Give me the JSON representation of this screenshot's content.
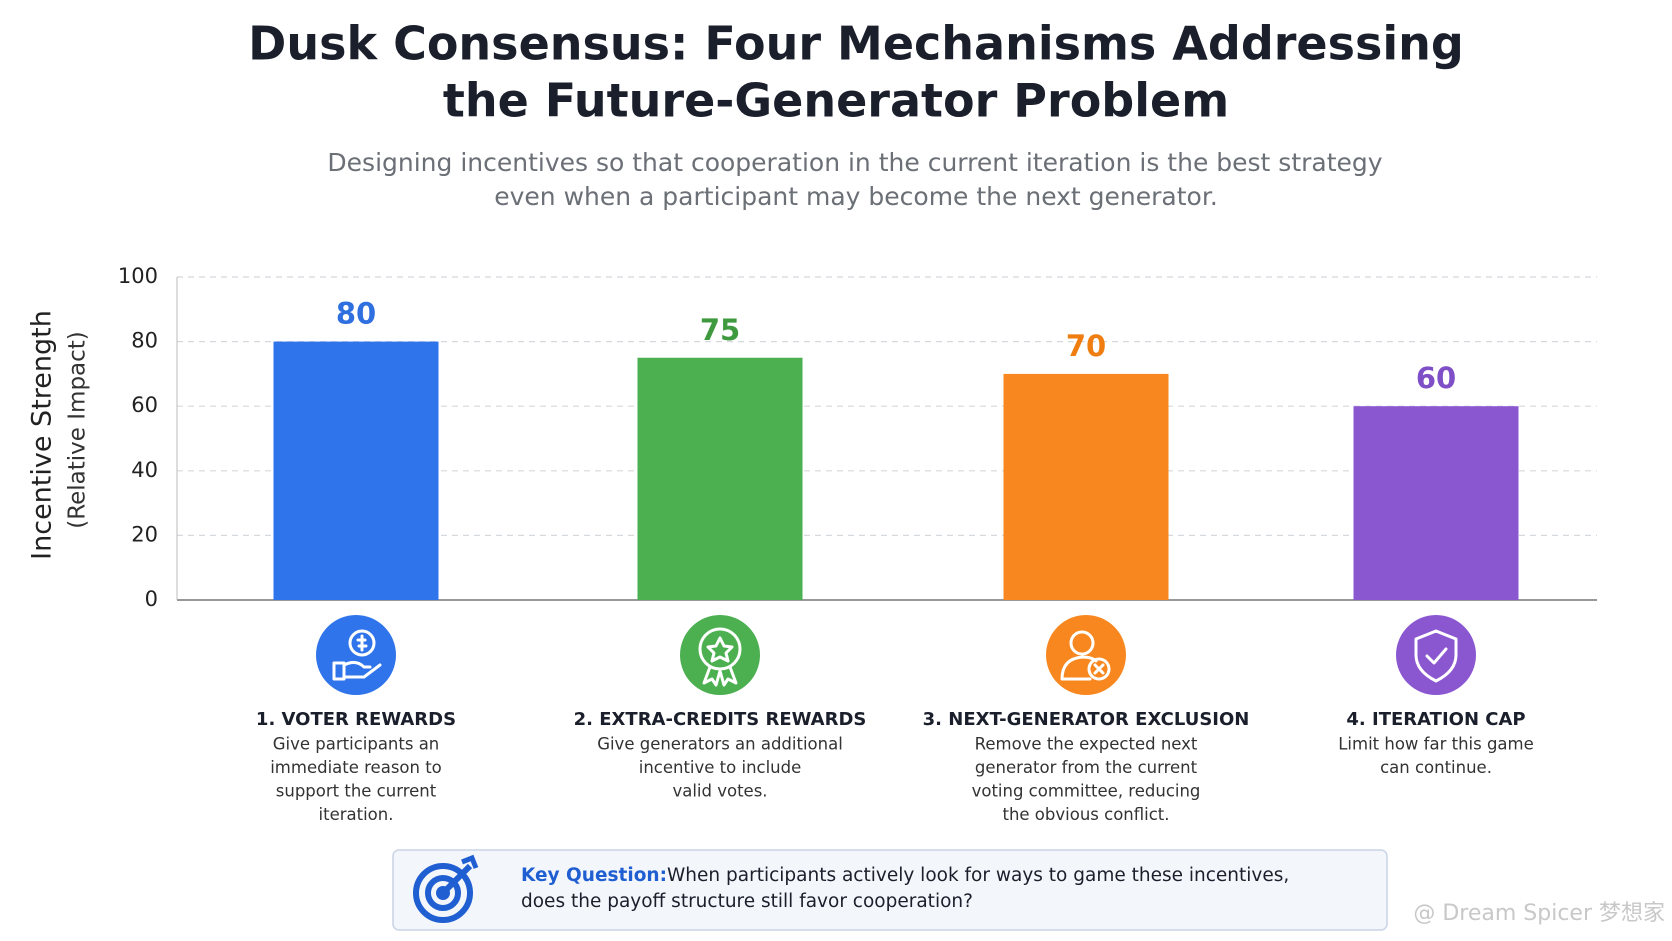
{
  "chart_data": {
    "type": "bar",
    "title": [
      "Dusk Consensus: Four Mechanisms Addressing",
      "the Future-Generator Problem"
    ],
    "subtitle": [
      "Designing incentives so that cooperation in the current iteration is the best strategy",
      "even when a participant may become the next generator."
    ],
    "y_label": [
      "Incentive Strength",
      "(Relative Impact)"
    ],
    "categories": [
      "1. VOTER REWARDS",
      "2. EXTRA-CREDITS REWARDS",
      "3. NEXT-GENERATOR EXCLUSION",
      "4. ITERATION CAP"
    ],
    "descriptions": [
      [
        "Give participants an",
        "immediate reason to",
        "support the current",
        "iteration."
      ],
      [
        "Give generators an additional",
        "incentive to include",
        "valid votes."
      ],
      [
        "Remove the expected next",
        "generator from the current",
        "voting committee, reducing",
        "the obvious conflict."
      ],
      [
        "Limit how far this game",
        "can continue."
      ]
    ],
    "values": [
      80,
      75,
      70,
      60
    ],
    "colors": [
      "#2f74ea",
      "#4caf50",
      "#f7871e",
      "#8a57d1"
    ],
    "label_colors": [
      "#2f6fe0",
      "#3f9a3f",
      "#ef7d10",
      "#7e4fc6"
    ],
    "ylim": [
      0,
      100
    ],
    "yticks": [
      0,
      20,
      40,
      60,
      80,
      100
    ],
    "grid": true
  },
  "key_question": {
    "label": "Key Question:",
    "lines": [
      "When participants actively look for ways to game these incentives,",
      "does the payoff structure still favor cooperation?"
    ]
  },
  "watermark": "@ Dream Spicer 梦想家"
}
